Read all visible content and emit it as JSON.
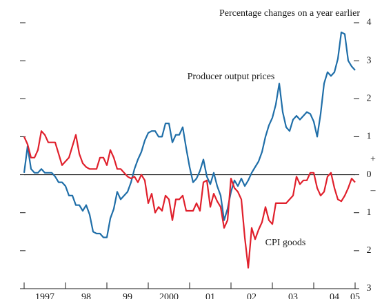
{
  "chart_data": {
    "type": "line",
    "subtitle": "Percentage changes on a year earlier",
    "annotations": [
      {
        "text": "Producer output prices",
        "series": 0
      },
      {
        "text": "CPI goods",
        "series": 1
      }
    ],
    "sign_labels": {
      "positive": "+",
      "negative": "–"
    },
    "xlim": [
      1997,
      2005
    ],
    "xticks": [
      {
        "value": 1997,
        "label": "1997"
      },
      {
        "value": 1998,
        "label": "98"
      },
      {
        "value": 1999,
        "label": "99"
      },
      {
        "value": 2000,
        "label": "2000"
      },
      {
        "value": 2001,
        "label": "01"
      },
      {
        "value": 2002,
        "label": "02"
      },
      {
        "value": 2003,
        "label": "03"
      },
      {
        "value": 2004,
        "label": "04"
      },
      {
        "value": 2005,
        "label": "05"
      }
    ],
    "ylim": [
      -3,
      4
    ],
    "yticks": [
      {
        "value": -3,
        "label": "3"
      },
      {
        "value": -2,
        "label": "2"
      },
      {
        "value": -1,
        "label": "1"
      },
      0,
      1,
      2,
      3,
      4
    ],
    "x": [
      1997,
      1997.083,
      1997.167,
      1997.25,
      1997.333,
      1997.417,
      1997.5,
      1997.583,
      1997.667,
      1997.75,
      1997.833,
      1997.917,
      1998,
      1998.083,
      1998.167,
      1998.25,
      1998.333,
      1998.417,
      1998.5,
      1998.583,
      1998.667,
      1998.75,
      1998.833,
      1998.917,
      1999,
      1999.083,
      1999.167,
      1999.25,
      1999.333,
      1999.417,
      1999.5,
      1999.583,
      1999.667,
      1999.75,
      1999.833,
      1999.917,
      2000,
      2000.083,
      2000.167,
      2000.25,
      2000.333,
      2000.417,
      2000.5,
      2000.583,
      2000.667,
      2000.75,
      2000.833,
      2000.917,
      2001,
      2001.083,
      2001.167,
      2001.25,
      2001.333,
      2001.417,
      2001.5,
      2001.583,
      2001.667,
      2001.75,
      2001.833,
      2001.917,
      2002,
      2002.083,
      2002.167,
      2002.25,
      2002.333,
      2002.417,
      2002.5,
      2002.583,
      2002.667,
      2002.75,
      2002.833,
      2002.917,
      2003,
      2003.083,
      2003.167,
      2003.25,
      2003.333,
      2003.417,
      2003.5,
      2003.583,
      2003.667,
      2003.75,
      2003.833,
      2003.917,
      2004,
      2004.083,
      2004.167,
      2004.25,
      2004.333,
      2004.417,
      2004.5,
      2004.583,
      2004.667,
      2004.75,
      2004.833,
      2004.917,
      2005
    ],
    "series": [
      {
        "name": "Producer output prices",
        "color": "#1f6ea8",
        "values": [
          0.05,
          0.75,
          0.15,
          0.05,
          0.05,
          0.15,
          0.05,
          0.05,
          0.05,
          -0.05,
          -0.2,
          -0.2,
          -0.3,
          -0.55,
          -0.55,
          -0.8,
          -0.8,
          -0.95,
          -0.8,
          -1.05,
          -1.5,
          -1.55,
          -1.55,
          -1.65,
          -1.65,
          -1.15,
          -0.9,
          -0.45,
          -0.65,
          -0.55,
          -0.45,
          -0.2,
          0.15,
          0.4,
          0.6,
          0.9,
          1.1,
          1.15,
          1.15,
          1.0,
          1.0,
          1.35,
          1.35,
          0.85,
          1.05,
          1.05,
          1.25,
          0.7,
          0.2,
          -0.2,
          -0.1,
          0.1,
          0.4,
          -0.05,
          -0.25,
          0.05,
          -0.3,
          -0.55,
          -1.2,
          -0.9,
          -0.45,
          -0.15,
          -0.3,
          -0.1,
          -0.3,
          -0.15,
          0.05,
          0.2,
          0.35,
          0.6,
          1.0,
          1.3,
          1.5,
          1.85,
          2.4,
          1.65,
          1.25,
          1.15,
          1.45,
          1.55,
          1.45,
          1.55,
          1.65,
          1.6,
          1.4,
          1.0,
          1.6,
          2.4,
          2.7,
          2.6,
          2.7,
          3.05,
          3.75,
          3.7,
          3.0,
          2.85,
          2.75
        ]
      },
      {
        "name": "CPI goods",
        "color": "#e0202c",
        "values": [
          1.0,
          0.8,
          0.45,
          0.45,
          0.65,
          1.15,
          1.05,
          0.85,
          0.85,
          0.85,
          0.55,
          0.25,
          0.35,
          0.45,
          0.75,
          1.05,
          0.55,
          0.3,
          0.2,
          0.15,
          0.15,
          0.15,
          0.45,
          0.45,
          0.25,
          0.65,
          0.45,
          0.15,
          0.15,
          0.05,
          -0.05,
          -0.1,
          -0.05,
          -0.2,
          0.0,
          -0.15,
          -0.75,
          -0.5,
          -1.0,
          -0.85,
          -0.95,
          -0.55,
          -0.65,
          -1.2,
          -0.65,
          -0.65,
          -0.55,
          -0.95,
          -0.95,
          -0.95,
          -0.75,
          -0.95,
          -0.2,
          -0.15,
          -0.85,
          -0.5,
          -0.7,
          -0.85,
          -1.4,
          -1.2,
          -0.1,
          -0.35,
          -0.45,
          -0.65,
          -1.65,
          -2.45,
          -1.4,
          -1.7,
          -1.45,
          -1.25,
          -0.85,
          -1.2,
          -1.3,
          -0.75,
          -0.75,
          -0.75,
          -0.75,
          -0.65,
          -0.55,
          -0.05,
          -0.25,
          -0.15,
          -0.15,
          0.05,
          0.05,
          -0.35,
          -0.55,
          -0.45,
          -0.05,
          0.05,
          -0.35,
          -0.65,
          -0.7,
          -0.55,
          -0.35,
          -0.1,
          -0.2
        ]
      }
    ]
  }
}
